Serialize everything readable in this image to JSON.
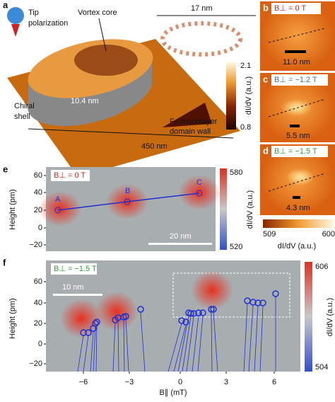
{
  "panel_a": {
    "label": "a",
    "tip": [
      "Tip",
      "polarization"
    ],
    "vortex_core": "Vortex core",
    "scale_17": "17 nm",
    "chiral_shell": [
      "Chiral",
      "shell"
    ],
    "height": "10.4 nm",
    "width": "450 nm",
    "fe": [
      "Fe monolayer",
      "domain wall"
    ],
    "colorbar": {
      "max": "2.1",
      "min": "0.8",
      "label": "dI/dV (a.u.)"
    }
  },
  "panel_b": {
    "label": "b",
    "field": "B⊥ = 0 T",
    "scale": "11.0 nm"
  },
  "panel_c": {
    "label": "c",
    "field": "B⊥ = −1.2 T",
    "scale": "5.5 nm"
  },
  "panel_d": {
    "label": "d",
    "field": "B⊥ = −1.5 T",
    "scale": "4.3 nm"
  },
  "colorbar_bcd": {
    "min": "509",
    "max": "600",
    "label": "dI/dV (a.u.)"
  },
  "panel_e": {
    "label": "e",
    "field": "B⊥ = 0 T",
    "points": [
      "A",
      "B",
      "C"
    ],
    "scale": "20 nm",
    "yticks": [
      "60",
      "40",
      "20",
      "0",
      "−20"
    ],
    "ylabel": "Height (pm)",
    "colorbar": {
      "max": "580",
      "min": "520",
      "label": "dI/dV (a.u.)"
    }
  },
  "panel_f": {
    "label": "f",
    "field": "B⊥ = −1.5 T",
    "scale": "10 nm",
    "yticks": [
      "60",
      "40",
      "20",
      "0",
      "−20"
    ],
    "xticks": [
      "−6",
      "−3",
      "0",
      "3",
      "6"
    ],
    "xlabel": "B∥ (mT)",
    "ylabel": "Height (pm)",
    "colorbar": {
      "max": "606",
      "min": "504",
      "label": "dI/dV (a.u.)"
    }
  }
}
